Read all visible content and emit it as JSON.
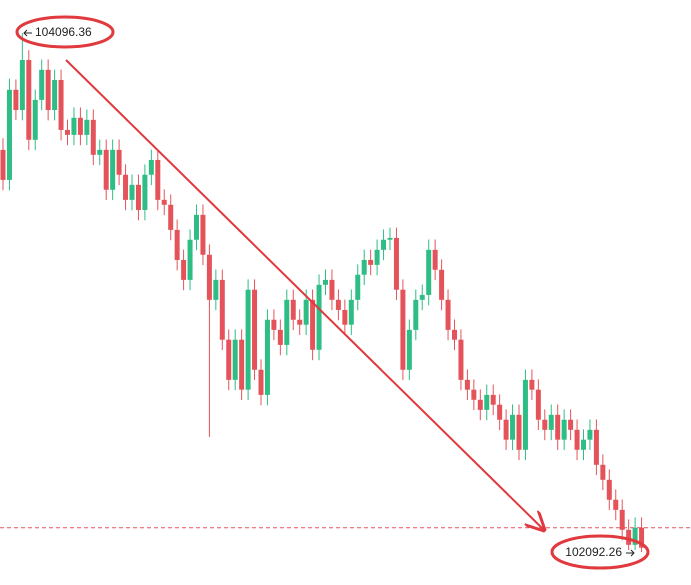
{
  "chart_data": {
    "type": "candlestick",
    "up_color": "#2ebd85",
    "down_color": "#e5535a",
    "line_color": "#e5535a",
    "open": [
      103645,
      103529,
      103877,
      103799,
      103992,
      103684,
      103838,
      103954,
      103799,
      103915,
      103722,
      103703,
      103769,
      103703,
      103761,
      103626,
      103645,
      103491,
      103645,
      103549,
      103452,
      103510,
      103413,
      103549,
      103606,
      103452,
      103433,
      103336,
      103220,
      103143,
      103298,
      103394,
      103240,
      103066,
      103143,
      102912,
      102757,
      102912,
      102719,
      103105,
      102796,
      102699,
      102989,
      102950,
      102892,
      103066,
      102989,
      102970,
      103066,
      102873,
      103124,
      103143,
      103066,
      103027,
      102970,
      103066,
      103163,
      103220,
      103201,
      103259,
      103298,
      103305,
      103105,
      102796,
      102950,
      103066,
      103085,
      103259,
      103182,
      103066,
      102950,
      102912,
      102757,
      102719,
      102680,
      102641,
      102699,
      102661,
      102603,
      102526,
      102622,
      102487,
      102757,
      102719,
      102603,
      102564,
      102622,
      102526,
      102603,
      102564,
      102487,
      102526,
      102564,
      102429,
      102371,
      102294,
      102255,
      102178,
      102120,
      102186
    ],
    "high": [
      103690,
      103920,
      103917,
      104096.36,
      104030,
      103878,
      103994,
      103994,
      103955,
      103955,
      103762,
      103809,
      103809,
      103801,
      103801,
      103685,
      103685,
      103685,
      103685,
      103589,
      103550,
      103550,
      103589,
      103646,
      103646,
      103492,
      103473,
      103376,
      103260,
      103338,
      103434,
      103434,
      103280,
      103183,
      103183,
      102952,
      102952,
      102952,
      103145,
      103145,
      102836,
      103029,
      103029,
      102990,
      103106,
      103106,
      103029,
      103106,
      103106,
      103164,
      103183,
      103183,
      103106,
      103067,
      103106,
      103203,
      103260,
      103260,
      103299,
      103338,
      103345,
      103345,
      103145,
      102990,
      103106,
      103125,
      103299,
      103299,
      103222,
      103106,
      102990,
      102952,
      102797,
      102759,
      102720,
      102739,
      102739,
      102701,
      102643,
      102662,
      102662,
      102797,
      102797,
      102759,
      102643,
      102662,
      102662,
      102643,
      102643,
      102604,
      102566,
      102604,
      102604,
      102469,
      102411,
      102334,
      102295,
      102218,
      102226,
      102226
    ],
    "low": [
      103489,
      103489,
      103760,
      103759,
      103644,
      103644,
      103798,
      103759,
      103759,
      103682,
      103663,
      103663,
      103663,
      103663,
      103586,
      103586,
      103451,
      103451,
      103509,
      103412,
      103412,
      103373,
      103373,
      103509,
      103412,
      103393,
      103296,
      103180,
      103103,
      103103,
      103258,
      103200,
      102537,
      103026,
      102872,
      102717,
      102717,
      102679,
      102679,
      102756,
      102659,
      102659,
      102910,
      102852,
      102852,
      102949,
      102930,
      102930,
      102833,
      102833,
      103084,
      103026,
      102987,
      102930,
      102930,
      103026,
      103123,
      103161,
      103161,
      103219,
      103258,
      103065,
      102756,
      102756,
      102910,
      103026,
      103045,
      103142,
      103026,
      102910,
      102872,
      102717,
      102679,
      102640,
      102601,
      102601,
      102621,
      102563,
      102486,
      102486,
      102447,
      102447,
      102679,
      102563,
      102524,
      102524,
      102486,
      102486,
      102524,
      102447,
      102447,
      102486,
      102389,
      102331,
      102254,
      102215,
      102138,
      102100,
      102100,
      102092.26
    ],
    "close": [
      103529,
      103877,
      103799,
      103992,
      103684,
      103838,
      103954,
      103799,
      103915,
      103722,
      103703,
      103769,
      103703,
      103761,
      103626,
      103645,
      103491,
      103645,
      103549,
      103452,
      103510,
      103413,
      103549,
      103606,
      103452,
      103433,
      103336,
      103220,
      103143,
      103298,
      103394,
      103240,
      103066,
      103143,
      102912,
      102757,
      102912,
      102719,
      103105,
      102796,
      102699,
      102989,
      102950,
      102892,
      103066,
      102989,
      102970,
      103066,
      102873,
      103124,
      103143,
      103066,
      103027,
      102970,
      103066,
      103163,
      103220,
      103201,
      103259,
      103298,
      103305,
      103105,
      102796,
      102950,
      103066,
      103085,
      103259,
      103182,
      103066,
      102950,
      102912,
      102757,
      102719,
      102680,
      102641,
      102699,
      102661,
      102603,
      102526,
      102622,
      102487,
      102757,
      102719,
      102603,
      102564,
      102622,
      102526,
      102603,
      102564,
      102487,
      102526,
      102564,
      102429,
      102371,
      102294,
      102255,
      102178,
      102120,
      102186,
      102109
    ],
    "price_line": 102186
  }
}
